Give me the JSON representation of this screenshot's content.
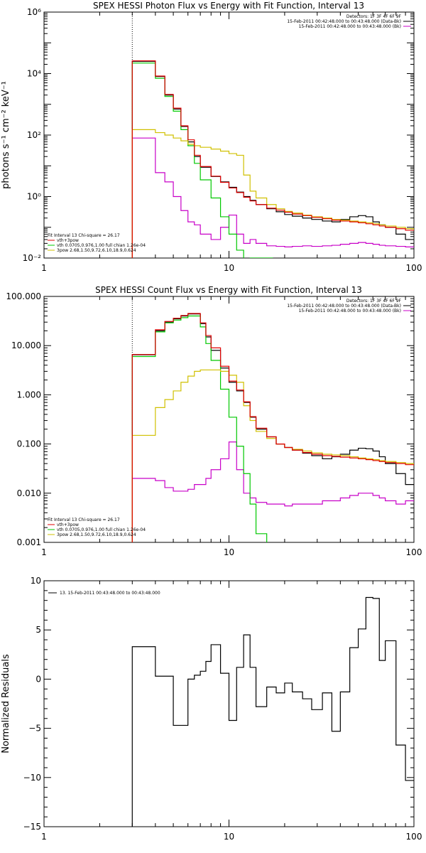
{
  "colors": {
    "black": "#000000",
    "red": "#e00000",
    "green": "#00c800",
    "yellow": "#d0c000",
    "magenta": "#c800c8"
  },
  "chart_data": [
    {
      "type": "line",
      "title": "SPEX HESSI Photon Flux vs Energy with Fit Function, Interval 13",
      "ylabel": "photons s⁻¹ cm⁻² keV⁻¹",
      "xlabel": "",
      "xscale": "log",
      "yscale": "log",
      "xlim": [
        1,
        100
      ],
      "ylim": [
        0.01,
        1000000
      ],
      "xticks": [
        {
          "v": 1,
          "label": "1"
        },
        {
          "v": 10,
          "label": "10"
        },
        {
          "v": 100,
          "label": "100"
        }
      ],
      "yticks": [
        {
          "v": 0.01,
          "label": "10⁻²"
        },
        {
          "v": 1,
          "label": "10⁰"
        },
        {
          "v": 100,
          "label": "10²"
        },
        {
          "v": 10000,
          "label": "10⁴"
        },
        {
          "v": 1000000,
          "label": "10⁶"
        }
      ],
      "vline": 3,
      "legend_top": [
        "Detectors: 1F 3F 4F 6F 9F",
        "15-Feb-2011 00:42:48.000 to 00:43:48.000 (Data-Bk)",
        "15-Feb-2011 00:42:48.000 to 00:43:48.000 (Bk)"
      ],
      "legend_bottom": [
        "Fit Interval 13   Chi-square = 26.17",
        "vth+3pow",
        "vth 0.0705,0.976,1.00  full chian 1.26e-04",
        "3pow 2.68,1.50,9.72,6.10,18.9,0.624"
      ],
      "series": [
        {
          "name": "Data-Bk",
          "color": "black",
          "x": [
            3,
            3.5,
            4,
            4.5,
            5,
            5.5,
            6,
            6.5,
            7,
            8,
            9,
            10,
            11,
            12,
            13,
            14,
            16,
            18,
            20,
            22,
            25,
            28,
            32,
            36,
            40,
            45,
            50,
            55,
            60,
            65,
            70,
            80,
            90,
            100
          ],
          "y": [
            25000,
            25000,
            8000,
            2000,
            700,
            190,
            60,
            20,
            9,
            4.5,
            3,
            2,
            1.4,
            1.0,
            0.75,
            0.55,
            0.4,
            0.32,
            0.26,
            0.23,
            0.2,
            0.18,
            0.16,
            0.15,
            0.18,
            0.22,
            0.24,
            0.22,
            0.15,
            0.12,
            0.1,
            0.06,
            0.04,
            0.04
          ]
        },
        {
          "name": "Bk",
          "color": "magenta",
          "x": [
            3,
            3.5,
            4,
            4.5,
            5,
            5.5,
            6,
            6.5,
            7,
            8,
            9,
            10,
            11,
            12,
            13,
            14,
            16,
            18,
            20,
            22,
            25,
            28,
            32,
            36,
            40,
            45,
            50,
            55,
            60,
            65,
            70,
            80,
            90,
            100
          ],
          "y": [
            80,
            80,
            6,
            3,
            1,
            0.35,
            0.15,
            0.12,
            0.06,
            0.04,
            0.1,
            0.25,
            0.06,
            0.03,
            0.04,
            0.03,
            0.025,
            0.024,
            0.023,
            0.024,
            0.025,
            0.024,
            0.025,
            0.026,
            0.028,
            0.03,
            0.032,
            0.03,
            0.028,
            0.026,
            0.025,
            0.024,
            0.023,
            0.023
          ]
        },
        {
          "name": "vth+3pow",
          "color": "red",
          "x": [
            3,
            3.5,
            4,
            4.5,
            5,
            5.5,
            6,
            6.5,
            7,
            8,
            9,
            10,
            11,
            12,
            13,
            14,
            16,
            18,
            20,
            22,
            25,
            28,
            32,
            36,
            40,
            45,
            50,
            55,
            60,
            65,
            70,
            80,
            90,
            100
          ],
          "y": [
            26000,
            26000,
            8300,
            2100,
            750,
            200,
            70,
            22,
            9.5,
            4.6,
            2.9,
            1.9,
            1.35,
            0.95,
            0.72,
            0.55,
            0.42,
            0.36,
            0.31,
            0.27,
            0.24,
            0.21,
            0.19,
            0.17,
            0.16,
            0.15,
            0.14,
            0.13,
            0.12,
            0.11,
            0.1,
            0.09,
            0.08,
            0.08
          ]
        },
        {
          "name": "vth",
          "color": "green",
          "x": [
            3,
            3.5,
            4,
            4.5,
            5,
            5.5,
            6,
            6.5,
            7,
            8,
            9,
            10,
            11,
            12,
            13,
            14,
            16
          ],
          "y": [
            22000,
            22000,
            7000,
            1800,
            600,
            150,
            45,
            12,
            3.5,
            0.9,
            0.22,
            0.06,
            0.018,
            0.006,
            0.01,
            0.01,
            0.01
          ]
        },
        {
          "name": "3pow",
          "color": "yellow",
          "x": [
            3,
            3.5,
            4,
            4.5,
            5,
            5.5,
            6,
            6.5,
            7,
            8,
            9,
            10,
            11,
            12,
            13,
            14,
            16,
            18,
            20,
            22,
            25,
            28,
            32,
            36,
            40,
            45,
            50,
            55,
            60,
            65,
            70,
            80,
            90,
            100
          ],
          "y": [
            150,
            150,
            120,
            100,
            80,
            65,
            50,
            45,
            40,
            35,
            30,
            25,
            22,
            5,
            1.5,
            0.9,
            0.55,
            0.4,
            0.33,
            0.29,
            0.25,
            0.22,
            0.2,
            0.18,
            0.17,
            0.16,
            0.15,
            0.14,
            0.13,
            0.12,
            0.11,
            0.1,
            0.09,
            0.085
          ]
        }
      ]
    },
    {
      "type": "line",
      "title": "SPEX HESSI Count Flux vs Energy with Fit Function, Interval 13",
      "ylabel": "",
      "xlabel": "",
      "xscale": "log",
      "yscale": "log",
      "xlim": [
        1,
        100
      ],
      "ylim": [
        0.001,
        100
      ],
      "xticks": [
        {
          "v": 1,
          "label": "1"
        },
        {
          "v": 10,
          "label": "10"
        },
        {
          "v": 100,
          "label": "100"
        }
      ],
      "yticks": [
        {
          "v": 0.001,
          "label": "0.001"
        },
        {
          "v": 0.01,
          "label": "0.010"
        },
        {
          "v": 0.1,
          "label": "0.100"
        },
        {
          "v": 1,
          "label": "1.000"
        },
        {
          "v": 10,
          "label": "10.000"
        },
        {
          "v": 100,
          "label": "100.000"
        }
      ],
      "vline": 3,
      "legend_top": [
        "Detectors: 1F 3F 4F 6F 9F",
        "15-Feb-2011 00:42:48.000 to 00:43:48.000 (Data-Bk)",
        "15-Feb-2011 00:42:48.000 to 00:43:48.000 (Bk)"
      ],
      "legend_bottom": [
        "Fit Interval 13   Chi-square = 26.17",
        "vth+3pow",
        "vth 0.0705,0.976,1.00  full chian 1.26e-04",
        "3pow 2.68,1.50,9.72,6.10,18.9,0.624"
      ],
      "series": [
        {
          "name": "Data-Bk",
          "color": "black",
          "x": [
            3,
            3.5,
            4,
            4.5,
            5,
            5.5,
            6,
            6.5,
            7,
            7.5,
            8,
            9,
            10,
            11,
            12,
            13,
            14,
            16,
            18,
            20,
            22,
            25,
            28,
            32,
            36,
            40,
            45,
            50,
            55,
            60,
            65,
            70,
            80,
            90,
            100
          ],
          "y": [
            6.5,
            6.5,
            20,
            30,
            35,
            40,
            44,
            44,
            28,
            15,
            8,
            3.5,
            1.8,
            1.2,
            0.7,
            0.35,
            0.2,
            0.14,
            0.1,
            0.085,
            0.075,
            0.065,
            0.058,
            0.05,
            0.055,
            0.062,
            0.075,
            0.082,
            0.08,
            0.072,
            0.055,
            0.04,
            0.025,
            0.015,
            0.015
          ]
        },
        {
          "name": "Bk",
          "color": "magenta",
          "x": [
            3,
            3.5,
            4,
            4.5,
            5,
            5.5,
            6,
            6.5,
            7,
            7.5,
            8,
            9,
            10,
            11,
            12,
            13,
            14,
            16,
            18,
            20,
            22,
            25,
            28,
            32,
            36,
            40,
            45,
            50,
            55,
            60,
            65,
            70,
            80,
            90,
            100
          ],
          "y": [
            0.02,
            0.02,
            0.018,
            0.013,
            0.011,
            0.011,
            0.012,
            0.015,
            0.015,
            0.02,
            0.03,
            0.05,
            0.11,
            0.03,
            0.01,
            0.008,
            0.0065,
            0.006,
            0.006,
            0.0055,
            0.006,
            0.006,
            0.006,
            0.007,
            0.007,
            0.008,
            0.009,
            0.01,
            0.01,
            0.009,
            0.008,
            0.007,
            0.006,
            0.007,
            0.007
          ]
        },
        {
          "name": "vth+3pow",
          "color": "red",
          "x": [
            3,
            3.5,
            4,
            4.5,
            5,
            5.5,
            6,
            6.5,
            7,
            7.5,
            8,
            9,
            10,
            11,
            12,
            13,
            14,
            16,
            18,
            20,
            22,
            25,
            28,
            32,
            36,
            40,
            45,
            50,
            55,
            60,
            65,
            70,
            80,
            90,
            100
          ],
          "y": [
            6.6,
            6.6,
            21,
            31,
            36,
            41,
            45,
            45,
            29,
            16,
            9,
            3.8,
            1.9,
            1.25,
            0.72,
            0.36,
            0.21,
            0.14,
            0.1,
            0.085,
            0.075,
            0.067,
            0.062,
            0.058,
            0.056,
            0.054,
            0.052,
            0.05,
            0.048,
            0.046,
            0.044,
            0.042,
            0.04,
            0.038,
            0.037
          ]
        },
        {
          "name": "vth",
          "color": "green",
          "x": [
            3,
            3.5,
            4,
            4.5,
            5,
            5.5,
            6,
            6.5,
            7,
            7.5,
            8,
            9,
            10,
            11,
            12,
            13,
            14,
            16
          ],
          "y": [
            6,
            6,
            19,
            29,
            33,
            37,
            40,
            40,
            24,
            11,
            5,
            1.3,
            0.35,
            0.09,
            0.025,
            0.006,
            0.0015,
            0.0008
          ]
        },
        {
          "name": "3pow",
          "color": "yellow",
          "x": [
            3,
            3.5,
            4,
            4.5,
            5,
            5.5,
            6,
            6.5,
            7,
            7.5,
            8,
            9,
            10,
            11,
            12,
            13,
            14,
            16,
            18,
            20,
            22,
            25,
            28,
            32,
            36,
            40,
            45,
            50,
            55,
            60,
            65,
            70,
            80,
            90,
            100
          ],
          "y": [
            0.15,
            0.15,
            0.55,
            0.8,
            1.2,
            1.8,
            2.4,
            3.0,
            3.2,
            3.2,
            3.2,
            3.0,
            2.5,
            1.8,
            0.6,
            0.3,
            0.18,
            0.13,
            0.1,
            0.085,
            0.078,
            0.072,
            0.066,
            0.062,
            0.06,
            0.058,
            0.055,
            0.052,
            0.05,
            0.048,
            0.046,
            0.044,
            0.042,
            0.04,
            0.038
          ]
        }
      ]
    },
    {
      "type": "line",
      "title": "",
      "ylabel": "Normalized Residuals",
      "xlabel": "",
      "xscale": "log",
      "yscale": "linear",
      "xlim": [
        1,
        100
      ],
      "ylim": [
        -15,
        10
      ],
      "xticks": [
        {
          "v": 1,
          "label": "1"
        },
        {
          "v": 10,
          "label": "10"
        },
        {
          "v": 100,
          "label": "100"
        }
      ],
      "yticks": [
        {
          "v": -15,
          "label": "−15"
        },
        {
          "v": -10,
          "label": "−10"
        },
        {
          "v": -5,
          "label": "−5"
        },
        {
          "v": 0,
          "label": "0"
        },
        {
          "v": 5,
          "label": "5"
        },
        {
          "v": 10,
          "label": "10"
        }
      ],
      "vline": null,
      "legend_top": [],
      "legend_bottom": [],
      "legend_left": "13. 15-Feb-2011 00:43:48.000 to 00:43:48.000",
      "series": [
        {
          "name": "13",
          "color": "black",
          "x": [
            3,
            3.5,
            4,
            4.5,
            5,
            5.5,
            6,
            6.5,
            7,
            7.5,
            8,
            9,
            10,
            11,
            12,
            13,
            14,
            16,
            18,
            20,
            22,
            25,
            28,
            32,
            36,
            40,
            45,
            50,
            55,
            60,
            65,
            70,
            80,
            90,
            100
          ],
          "y": [
            3.3,
            3.3,
            0.3,
            0.3,
            -4.7,
            -4.7,
            0.0,
            0.4,
            0.8,
            1.8,
            3.5,
            0.6,
            -4.2,
            1.2,
            4.5,
            1.2,
            -2.8,
            -0.8,
            -1.4,
            -0.4,
            -1.3,
            -2.0,
            -3.1,
            -1.4,
            -5.3,
            -1.3,
            3.2,
            5.1,
            8.3,
            8.2,
            1.9,
            3.9,
            -6.7,
            -10.3,
            -10.3
          ]
        }
      ]
    }
  ]
}
